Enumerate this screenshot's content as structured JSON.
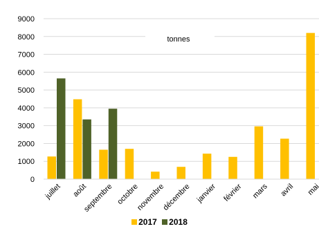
{
  "chart_data": {
    "type": "bar",
    "unit_label": "tonnes",
    "categories": [
      "juillet",
      "août",
      "septembre",
      "octobre",
      "novembre",
      "décembre",
      "janvier",
      "février",
      "mars",
      "avril",
      "mai"
    ],
    "series": [
      {
        "name": "2017",
        "color": "#FFC000",
        "values": [
          1270,
          4480,
          1650,
          1700,
          420,
          690,
          1430,
          1250,
          2960,
          2270,
          8200
        ]
      },
      {
        "name": "2018",
        "color": "#4F6228",
        "values": [
          5650,
          3350,
          3950,
          null,
          null,
          null,
          null,
          null,
          null,
          null,
          null
        ]
      }
    ],
    "yticks": [
      "0",
      "1000",
      "2000",
      "3000",
      "4000",
      "5000",
      "6000",
      "7000",
      "8000",
      "9000"
    ],
    "ylim": [
      0,
      9000
    ],
    "grid": true,
    "legend_position": "bottom"
  }
}
